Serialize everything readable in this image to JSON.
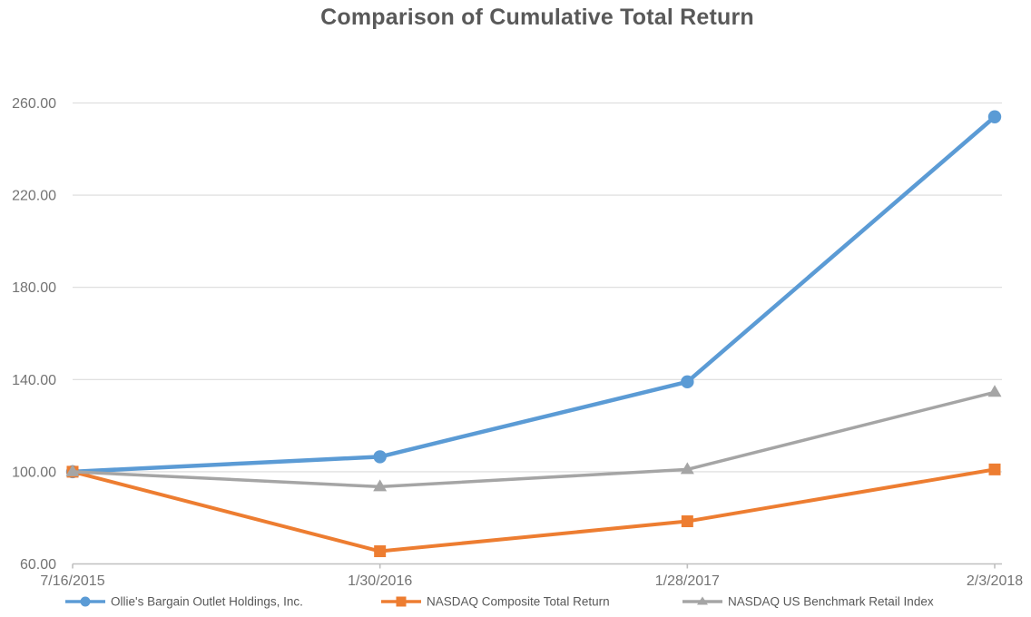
{
  "title": "Comparison of Cumulative Total Return",
  "chart_data": {
    "type": "line",
    "title": "Comparison of Cumulative Total Return",
    "categories": [
      "7/16/2015",
      "1/30/2016",
      "1/28/2017",
      "2/3/2018"
    ],
    "series": [
      {
        "id": "ollies",
        "name": "Ollie's Bargain Outlet Holdings, Inc.",
        "color": "#5B9BD5",
        "marker": "circle",
        "line_width": 4.5,
        "values": [
          100.0,
          106.5,
          139.0,
          254.0
        ]
      },
      {
        "id": "nasdaq-composite",
        "name": "NASDAQ Composite Total Return",
        "color": "#ED7D31",
        "marker": "square",
        "line_width": 4,
        "values": [
          100.0,
          65.5,
          78.5,
          101.0
        ]
      },
      {
        "id": "nasdaq-retail",
        "name": "NASDAQ US Benchmark Retail Index",
        "color": "#A5A5A5",
        "marker": "triangle",
        "line_width": 3.5,
        "values": [
          100.0,
          93.5,
          101.0,
          134.5
        ]
      }
    ],
    "y_axis": {
      "min": 60,
      "max": 260,
      "step": 40,
      "tick_labels": [
        "60.00",
        "100.00",
        "140.00",
        "180.00",
        "220.00",
        "260.00"
      ]
    },
    "x_axis": {
      "tick_labels": [
        "7/16/2015",
        "1/30/2016",
        "1/28/2017",
        "2/3/2018"
      ]
    },
    "legend_position": "bottom",
    "grid": true
  },
  "style": {
    "background": "#FFFFFF",
    "title_color": "#595959",
    "grid_color": "#DBDBDB",
    "axis_line_color": "#BFBFBF",
    "tick_label_color": "#737373",
    "legend_text_color": "#595959"
  }
}
